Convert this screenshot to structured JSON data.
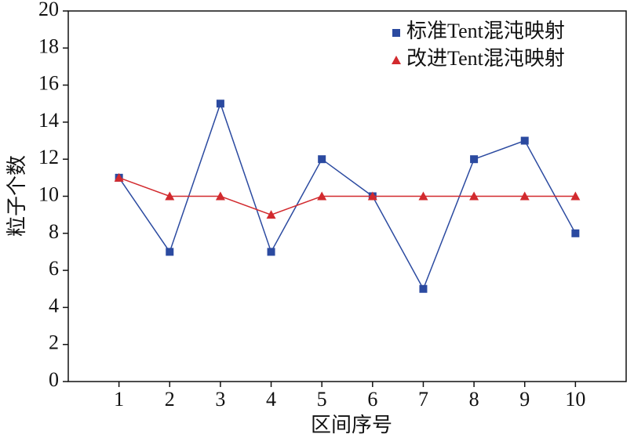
{
  "chart_data": {
    "type": "line",
    "x": [
      1,
      2,
      3,
      4,
      5,
      6,
      7,
      8,
      9,
      10
    ],
    "xlabel": "区间序号",
    "ylabel": "粒子个数",
    "xlim": [
      0,
      11
    ],
    "xticks": [
      1,
      2,
      3,
      4,
      5,
      6,
      7,
      8,
      9,
      10
    ],
    "ylim": [
      0,
      20
    ],
    "yticks": [
      0,
      2,
      4,
      6,
      8,
      10,
      12,
      14,
      16,
      18,
      20
    ],
    "legend": "upper right",
    "series": [
      {
        "name": "标准Tent混沌映射",
        "color": "#2b4aa0",
        "marker": "square",
        "values": [
          11,
          7,
          15,
          7,
          12,
          10,
          5,
          12,
          13,
          8
        ]
      },
      {
        "name": "改进Tent混沌映射",
        "color": "#d22a2e",
        "marker": "triangle",
        "values": [
          11,
          10,
          10,
          9,
          10,
          10,
          10,
          10,
          10,
          10
        ]
      }
    ]
  }
}
